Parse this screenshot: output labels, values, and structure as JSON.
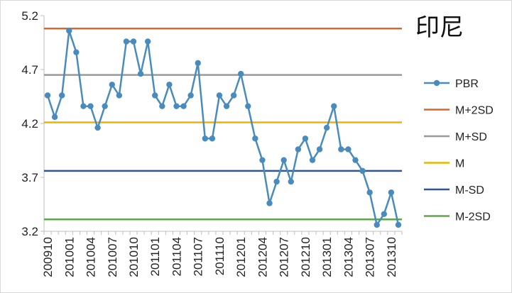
{
  "chart_data": {
    "type": "line",
    "title": "印尼",
    "xlabel": "",
    "ylabel": "",
    "ylim": [
      3.2,
      5.2
    ],
    "yticks": [
      "3.2",
      "3.7",
      "4.2",
      "4.7",
      "5.2"
    ],
    "xtick_labels": [
      "200910",
      "201001",
      "201004",
      "201007",
      "201010",
      "201101",
      "201104",
      "201107",
      "201110",
      "201201",
      "201204",
      "201207",
      "201210",
      "201301",
      "201304",
      "201307",
      "201310"
    ],
    "legend_position": "right",
    "grid": false,
    "series": [
      {
        "name": "PBR",
        "color": "#4A8BBE",
        "marker": "circle",
        "values": [
          4.46,
          4.26,
          4.46,
          5.06,
          4.86,
          4.36,
          4.36,
          4.16,
          4.36,
          4.56,
          4.46,
          4.96,
          4.96,
          4.66,
          4.96,
          4.46,
          4.36,
          4.56,
          4.36,
          4.36,
          4.46,
          4.76,
          4.06,
          4.06,
          4.46,
          4.36,
          4.46,
          4.66,
          4.36,
          4.06,
          3.86,
          3.46,
          3.66,
          3.86,
          3.66,
          3.96,
          4.06,
          3.86,
          3.96,
          4.16,
          4.36,
          3.96,
          3.96,
          3.86,
          3.76,
          3.56,
          3.26,
          3.36,
          3.56,
          3.26
        ]
      },
      {
        "name": "M+2SD",
        "color": "#D9692A",
        "constant": 5.08
      },
      {
        "name": "M+SD",
        "color": "#999999",
        "constant": 4.65
      },
      {
        "name": "M",
        "color": "#E8B500",
        "constant": 4.21
      },
      {
        "name": "M-SD",
        "color": "#2F5597",
        "constant": 3.76
      },
      {
        "name": "M-2SD",
        "color": "#5BAA46",
        "constant": 3.31
      }
    ]
  }
}
